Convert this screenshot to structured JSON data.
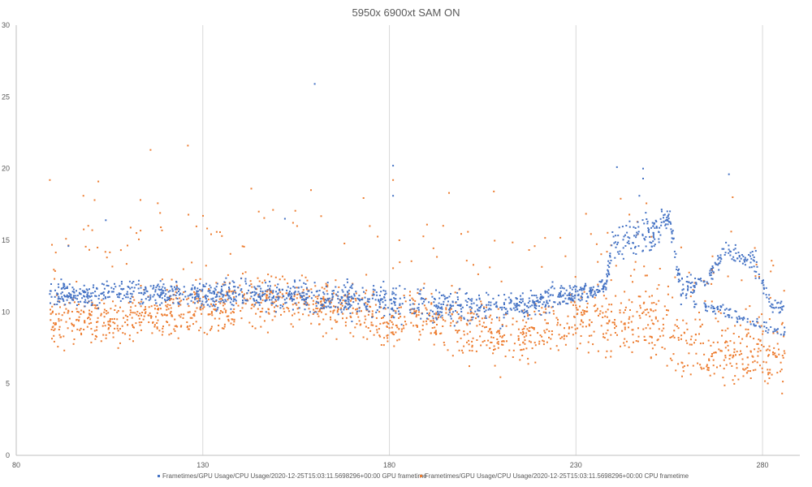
{
  "chart_data": {
    "type": "scatter",
    "title": "5950x 6900xt SAM ON",
    "xlabel": "",
    "ylabel": "",
    "xlim": [
      80,
      290
    ],
    "ylim": [
      0,
      30
    ],
    "x_ticks": [
      "80",
      "130",
      "180",
      "230",
      "280"
    ],
    "y_ticks": [
      "0",
      "5",
      "10",
      "15",
      "20",
      "25",
      "30"
    ],
    "x_tick_values": [
      80,
      130,
      180,
      230,
      280
    ],
    "y_tick_values": [
      0,
      5,
      10,
      15,
      20,
      25,
      30
    ],
    "grid": "vertical",
    "legend_position": "bottom",
    "x_range_data": [
      89,
      286
    ],
    "series": [
      {
        "name": "Frametimes/GPU Usage/CPU Usage/2020-12-25T15:03:11.5698296+00:00 GPU frametime",
        "color": "#4472C4",
        "trend_x": [
          89,
          110,
          150,
          175,
          185,
          200,
          215,
          238,
          240,
          250,
          255,
          258,
          265,
          270,
          278,
          282,
          286
        ],
        "trend_mean": [
          11.2,
          11.3,
          11.2,
          10.8,
          10.6,
          10.4,
          10.4,
          11.8,
          15.0,
          15.3,
          16.6,
          11.8,
          12.2,
          14.3,
          13.5,
          10.6,
          10.4
        ],
        "trend_spread": [
          0.6,
          0.6,
          0.7,
          0.7,
          0.8,
          0.8,
          0.7,
          0.4,
          0.9,
          0.9,
          0.6,
          0.5,
          0.4,
          0.5,
          0.5,
          0.4,
          0.3
        ],
        "secondary_band": {
          "x_from": 258,
          "x_to": 286,
          "start": 11.0,
          "end": 8.6
        },
        "outliers": [
          [
            160,
            25.9
          ],
          [
            181,
            20.2
          ],
          [
            181,
            18.1
          ],
          [
            241,
            20.1
          ],
          [
            248,
            20.0
          ],
          [
            248,
            19.3
          ],
          [
            271,
            19.6
          ],
          [
            104,
            16.4
          ],
          [
            152,
            16.5
          ],
          [
            94,
            14.6
          ],
          [
            247,
            18.1
          ]
        ]
      },
      {
        "name": "Frametimes/GPU Usage/CPU Usage/2020-12-25T15:03:11.5698296+00:00 CPU frametime",
        "color": "#ED7D31",
        "trend_x": [
          89,
          110,
          130,
          150,
          170,
          180,
          186,
          200,
          215,
          230,
          238,
          245,
          255,
          258,
          270,
          285
        ],
        "trend_mean": [
          9.4,
          9.5,
          10.4,
          10.9,
          10.2,
          9.0,
          10.0,
          8.6,
          8.3,
          9.4,
          9.6,
          9.6,
          9.0,
          7.8,
          7.2,
          6.8
        ],
        "trend_spread": [
          1.1,
          1.2,
          1.3,
          1.3,
          1.2,
          1.1,
          1.3,
          1.4,
          1.4,
          1.3,
          1.6,
          1.8,
          1.8,
          1.6,
          1.5,
          1.5
        ],
        "outliers": [
          [
            89,
            19.2
          ],
          [
            116,
            21.3
          ],
          [
            126,
            21.6
          ],
          [
            98,
            18.1
          ],
          [
            102,
            19.1
          ],
          [
            143,
            18.6
          ],
          [
            159,
            18.5
          ],
          [
            181,
            19.2
          ],
          [
            272,
            18.0
          ],
          [
            242,
            17.9
          ],
          [
            196,
            18.3
          ],
          [
            208,
            18.4
          ],
          [
            145,
            17.0
          ],
          [
            101,
            17.8
          ]
        ]
      }
    ]
  }
}
